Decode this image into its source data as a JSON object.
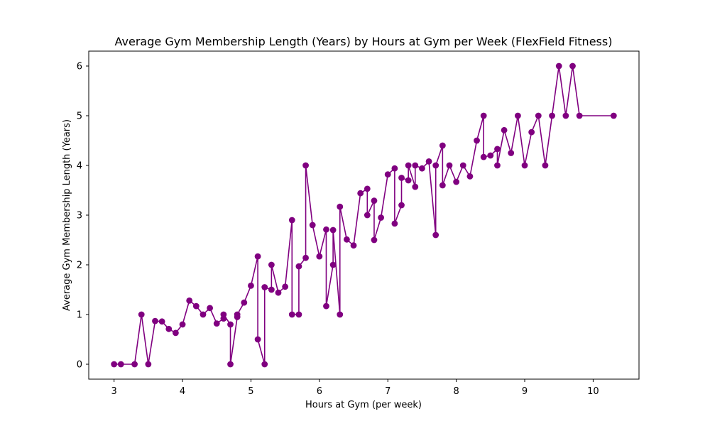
{
  "chart_data": {
    "type": "line",
    "title": "Average Gym Membership Length (Years) by Hours at Gym per Week (FlexField Fitness)",
    "xlabel": "Hours at Gym (per week)",
    "ylabel": "Average Gym Membership Length (Years)",
    "xlim": [
      2.63,
      10.67
    ],
    "ylim": [
      -0.3,
      6.3
    ],
    "xticks": [
      3,
      4,
      5,
      6,
      7,
      8,
      9,
      10
    ],
    "yticks": [
      0,
      1,
      2,
      3,
      4,
      5,
      6
    ],
    "grid": false,
    "color": "#800080",
    "marker": "circle",
    "series": [
      {
        "points": [
          [
            3.0,
            0
          ],
          [
            3.1,
            0
          ],
          [
            3.3,
            0
          ],
          [
            3.4,
            1.0
          ],
          [
            3.5,
            0
          ],
          [
            3.6,
            0.87
          ],
          [
            3.7,
            0.86
          ],
          [
            3.8,
            0.71
          ],
          [
            3.9,
            0.63
          ],
          [
            4.0,
            0.8
          ],
          [
            4.1,
            1.28
          ],
          [
            4.2,
            1.17
          ],
          [
            4.3,
            1.0
          ],
          [
            4.4,
            1.13
          ],
          [
            4.5,
            0.82
          ],
          [
            4.6,
            0.92
          ],
          [
            4.6,
            1.0
          ],
          [
            4.7,
            0.8
          ],
          [
            4.7,
            0
          ],
          [
            4.8,
            0.95
          ],
          [
            4.8,
            1.0
          ],
          [
            4.9,
            1.24
          ],
          [
            5.0,
            1.58
          ],
          [
            5.1,
            2.17
          ],
          [
            5.1,
            0.5
          ],
          [
            5.2,
            0
          ],
          [
            5.2,
            1.55
          ],
          [
            5.3,
            1.5
          ],
          [
            5.3,
            2.0
          ],
          [
            5.4,
            1.44
          ],
          [
            5.5,
            1.56
          ],
          [
            5.6,
            2.9
          ],
          [
            5.6,
            1.0
          ],
          [
            5.7,
            1.0
          ],
          [
            5.7,
            1.97
          ],
          [
            5.8,
            2.14
          ],
          [
            5.8,
            4.0
          ],
          [
            5.9,
            2.8
          ],
          [
            6.0,
            2.17
          ],
          [
            6.1,
            2.71
          ],
          [
            6.1,
            1.17
          ],
          [
            6.2,
            2.0
          ],
          [
            6.2,
            2.7
          ],
          [
            6.3,
            1.0
          ],
          [
            6.3,
            3.17
          ],
          [
            6.4,
            2.51
          ],
          [
            6.5,
            2.39
          ],
          [
            6.6,
            3.44
          ],
          [
            6.7,
            3.53
          ],
          [
            6.7,
            3.0
          ],
          [
            6.8,
            3.29
          ],
          [
            6.8,
            2.5
          ],
          [
            6.9,
            2.95
          ],
          [
            7.0,
            3.82
          ],
          [
            7.1,
            3.94
          ],
          [
            7.1,
            2.83
          ],
          [
            7.2,
            3.2
          ],
          [
            7.2,
            3.75
          ],
          [
            7.3,
            3.7
          ],
          [
            7.3,
            4.0
          ],
          [
            7.4,
            3.57
          ],
          [
            7.4,
            4.0
          ],
          [
            7.5,
            3.94
          ],
          [
            7.6,
            4.08
          ],
          [
            7.7,
            2.6
          ],
          [
            7.7,
            4.0
          ],
          [
            7.8,
            4.4
          ],
          [
            7.8,
            3.6
          ],
          [
            7.9,
            4.0
          ],
          [
            8.0,
            3.67
          ],
          [
            8.1,
            4.0
          ],
          [
            8.2,
            3.78
          ],
          [
            8.3,
            4.5
          ],
          [
            8.4,
            5.0
          ],
          [
            8.4,
            4.17
          ],
          [
            8.5,
            4.2
          ],
          [
            8.6,
            4.33
          ],
          [
            8.6,
            4.0
          ],
          [
            8.7,
            4.71
          ],
          [
            8.8,
            4.25
          ],
          [
            8.9,
            5.0
          ],
          [
            9.0,
            4.0
          ],
          [
            9.1,
            4.67
          ],
          [
            9.2,
            5.0
          ],
          [
            9.3,
            4.0
          ],
          [
            9.4,
            5.0
          ],
          [
            9.5,
            6.0
          ],
          [
            9.6,
            5.0
          ],
          [
            9.7,
            6.0
          ],
          [
            9.8,
            5.0
          ],
          [
            10.3,
            5.0
          ]
        ]
      }
    ]
  }
}
